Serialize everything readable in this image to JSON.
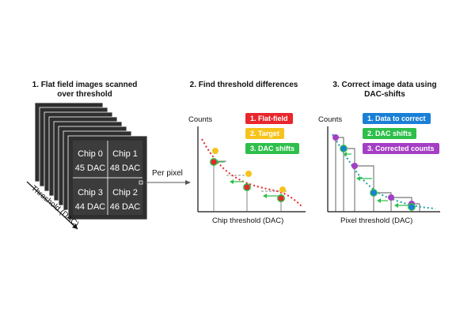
{
  "panel1": {
    "heading_line1": "1. Flat field images scanned",
    "heading_line2": "over threshold",
    "chips": [
      {
        "name": "Chip 0",
        "dac": "45 DAC"
      },
      {
        "name": "Chip 1",
        "dac": "48 DAC"
      },
      {
        "name": "Chip 3",
        "dac": "44 DAC"
      },
      {
        "name": "Chip 2",
        "dac": "46 DAC"
      }
    ],
    "axis_label": "Threshold (DAC)",
    "arrow_label": "Per pixel"
  },
  "panel2": {
    "heading": "2. Find threshold differences",
    "y_label": "Counts",
    "x_label": "Chip threshold (DAC)",
    "legend": [
      {
        "label": "1. Flat-field",
        "color": "#e8262c"
      },
      {
        "label": "2. Target",
        "color": "#f6c31d"
      },
      {
        "label": "3. DAC shifts",
        "color": "#2ebf4a"
      }
    ]
  },
  "panel3": {
    "heading_line1": "3. Correct image data using",
    "heading_line2": "DAC-shifts",
    "y_label": "Counts",
    "x_label": "Pixel threshold (DAC)",
    "legend": [
      {
        "label": "1. Data to correct",
        "color": "#1a7fd6"
      },
      {
        "label": "2. DAC shifts",
        "color": "#2ebf4a"
      },
      {
        "label": "3. Corrected counts",
        "color": "#a43fc4"
      }
    ]
  },
  "colors": {
    "stack_frame": "#2f2f2f",
    "chip_fill": "#3c3c3c",
    "flat_field_red": "#e8262c",
    "target_yellow": "#f6c31d",
    "shift_green": "#2ebf4a",
    "data_blue": "#1a7fd6",
    "corrected_purple": "#a43fc4",
    "teal_fit": "#1aa0a0"
  }
}
